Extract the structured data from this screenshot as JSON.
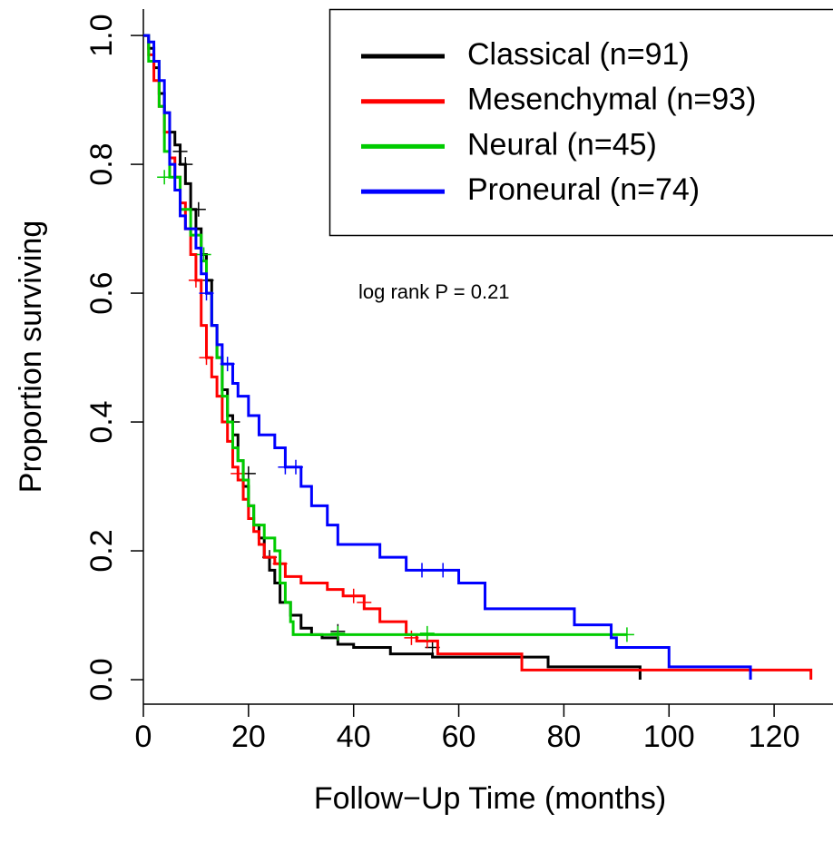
{
  "chart_data": {
    "type": "step",
    "xlabel": "Follow−Up Time (months)",
    "ylabel": "Proportion surviving",
    "annotation": "log rank P = 0.21",
    "xlim": [
      0,
      131.2
    ],
    "ylim": [
      -0.038,
      1.041
    ],
    "xticks": [
      0,
      20,
      40,
      60,
      80,
      100,
      120
    ],
    "yticks": [
      {
        "value": 0,
        "label": "0.0"
      },
      0.2,
      0.4,
      0.6,
      0.8,
      {
        "value": 1,
        "label": "1.0"
      }
    ],
    "legend": "top-right",
    "series": [
      {
        "name": "Classical (n=91)",
        "color": "#000000",
        "x": [
          0,
          1,
          2,
          3,
          4,
          5,
          6,
          7,
          8,
          9,
          10,
          11,
          12,
          13,
          14,
          15,
          16,
          17,
          18,
          19,
          20,
          21,
          22,
          23,
          24,
          25,
          26,
          28,
          30,
          32,
          34,
          37,
          40,
          47,
          55,
          77,
          94.5
        ],
        "values": [
          1,
          0.98,
          0.95,
          0.91,
          0.88,
          0.85,
          0.83,
          0.8,
          0.77,
          0.73,
          0.7,
          0.66,
          0.62,
          0.55,
          0.5,
          0.45,
          0.41,
          0.38,
          0.34,
          0.3,
          0.27,
          0.24,
          0.22,
          0.19,
          0.17,
          0.15,
          0.12,
          0.1,
          0.08,
          0.07,
          0.065,
          0.055,
          0.05,
          0.04,
          0.035,
          0.02,
          0
        ],
        "censor_x": [
          7,
          8,
          10.5,
          12,
          17,
          20,
          24,
          37,
          55
        ],
        "censor_y": [
          0.82,
          0.8,
          0.73,
          0.62,
          0.4,
          0.32,
          0.19,
          0.075,
          0.05
        ]
      },
      {
        "name": "Mesenchymal (n=93)",
        "color": "#ff0000",
        "x": [
          0,
          1,
          2,
          3,
          4,
          5,
          6,
          7,
          8,
          9,
          10,
          11,
          12,
          13,
          14,
          15,
          16,
          17,
          18,
          19,
          20,
          21,
          22,
          23,
          25,
          27,
          30,
          35,
          38,
          42,
          45,
          50,
          52,
          56,
          72,
          127
        ],
        "values": [
          1,
          0.97,
          0.93,
          0.89,
          0.85,
          0.81,
          0.78,
          0.74,
          0.7,
          0.66,
          0.62,
          0.55,
          0.5,
          0.47,
          0.44,
          0.4,
          0.37,
          0.33,
          0.31,
          0.28,
          0.25,
          0.23,
          0.21,
          0.19,
          0.18,
          0.16,
          0.15,
          0.14,
          0.13,
          0.11,
          0.09,
          0.07,
          0.06,
          0.04,
          0.015,
          0
        ],
        "censor_x": [
          10,
          12,
          18,
          26,
          40,
          42,
          51,
          54
        ],
        "censor_y": [
          0.62,
          0.5,
          0.32,
          0.18,
          0.13,
          0.12,
          0.065,
          0.06
        ]
      },
      {
        "name": "Neural (n=45)",
        "color": "#00cc00",
        "x": [
          0,
          1,
          3,
          4,
          5,
          7,
          9,
          11,
          12,
          13,
          14,
          15,
          16,
          17,
          18,
          19,
          20,
          21,
          23,
          25,
          26,
          27,
          28,
          28.5,
          92
        ],
        "values": [
          1,
          0.96,
          0.89,
          0.82,
          0.78,
          0.73,
          0.69,
          0.65,
          0.6,
          0.55,
          0.5,
          0.44,
          0.4,
          0.36,
          0.34,
          0.31,
          0.27,
          0.24,
          0.22,
          0.2,
          0.15,
          0.12,
          0.09,
          0.07,
          0.07
        ],
        "censor_x": [
          4,
          11.5,
          37,
          54,
          92
        ],
        "censor_y": [
          0.78,
          0.66,
          0.072,
          0.072,
          0.07
        ]
      },
      {
        "name": "Proneural (n=74)",
        "color": "#0000ff",
        "x": [
          0,
          1,
          2,
          3,
          4,
          5,
          6,
          7,
          8,
          10,
          11,
          12,
          13,
          14,
          15,
          17,
          18,
          20,
          22,
          25,
          27,
          30,
          32,
          35,
          37,
          45,
          50,
          60,
          65,
          82,
          89,
          90,
          100,
          115.5
        ],
        "values": [
          1,
          0.99,
          0.96,
          0.93,
          0.88,
          0.8,
          0.76,
          0.72,
          0.7,
          0.67,
          0.63,
          0.6,
          0.55,
          0.52,
          0.49,
          0.46,
          0.44,
          0.41,
          0.38,
          0.36,
          0.33,
          0.3,
          0.27,
          0.24,
          0.21,
          0.19,
          0.17,
          0.15,
          0.11,
          0.085,
          0.065,
          0.05,
          0.02,
          0
        ],
        "censor_x": [
          12,
          16,
          27,
          29,
          53,
          57
        ],
        "censor_y": [
          0.6,
          0.49,
          0.33,
          0.33,
          0.17,
          0.17
        ]
      }
    ]
  }
}
